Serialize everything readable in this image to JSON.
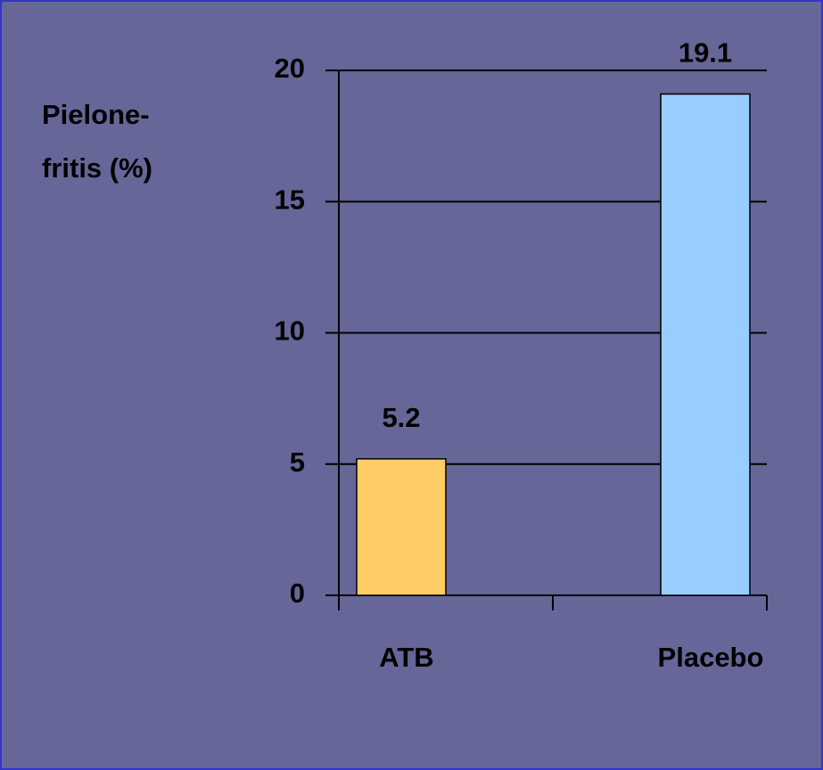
{
  "chart_data": {
    "type": "bar",
    "ylabel": [
      "Pielone-",
      "fritis (%)"
    ],
    "categories": [
      "ATB",
      "Placebo"
    ],
    "values": [
      5.2,
      19.1
    ],
    "colors": [
      "#ffcc66",
      "#99ccff"
    ],
    "ylim": [
      0,
      20
    ],
    "yticks": [
      0,
      5,
      10,
      15,
      20
    ],
    "grid": true
  }
}
